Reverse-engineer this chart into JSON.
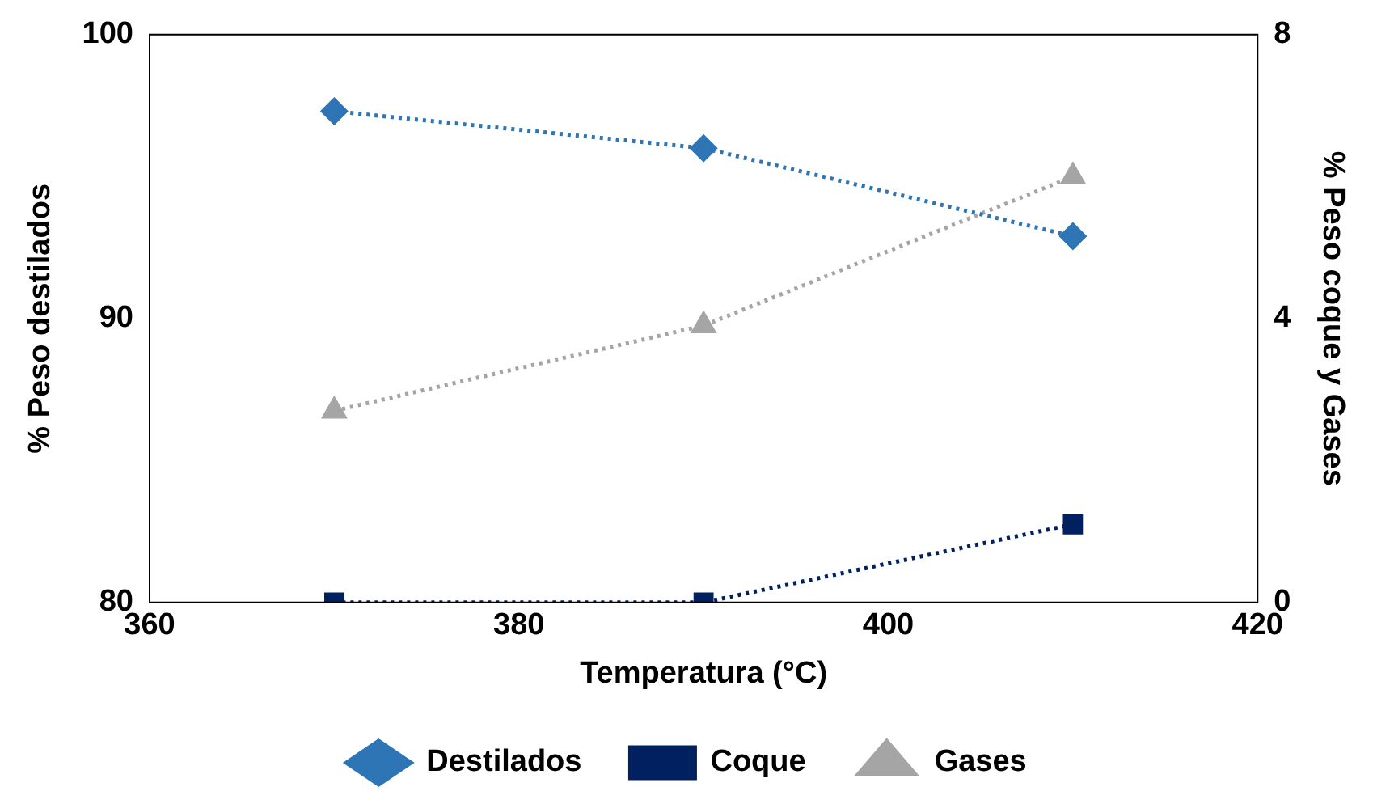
{
  "chart_data": {
    "type": "line",
    "x": [
      370,
      390,
      410
    ],
    "xlabel": "Temperatura (°C)",
    "ylabel": "% Peso destilados",
    "y2label": "% Peso coque y Gases",
    "xlim": [
      360,
      420
    ],
    "xticks": [
      360,
      380,
      400,
      420
    ],
    "ylim": [
      80,
      100
    ],
    "yticks": [
      80,
      90,
      100
    ],
    "y2lim": [
      0,
      8
    ],
    "y2ticks": [
      0,
      4,
      8
    ],
    "legend": "bottom",
    "series": [
      {
        "name": "Destilados",
        "color": "#2e75b6",
        "values": [
          97.3,
          96.0,
          92.9
        ],
        "marker": "diamond",
        "line_style": "dotted"
      },
      {
        "name": "Coque",
        "color": "#002060",
        "values": [
          0.0,
          0.0,
          1.1
        ],
        "axis": "y2",
        "marker": "square",
        "line_style": "dotted"
      },
      {
        "name": "Gases",
        "color": "#a5a5a5",
        "values": [
          2.7,
          3.9,
          6.0
        ],
        "axis": "y2",
        "marker": "triangle",
        "line_style": "dotted"
      }
    ]
  }
}
